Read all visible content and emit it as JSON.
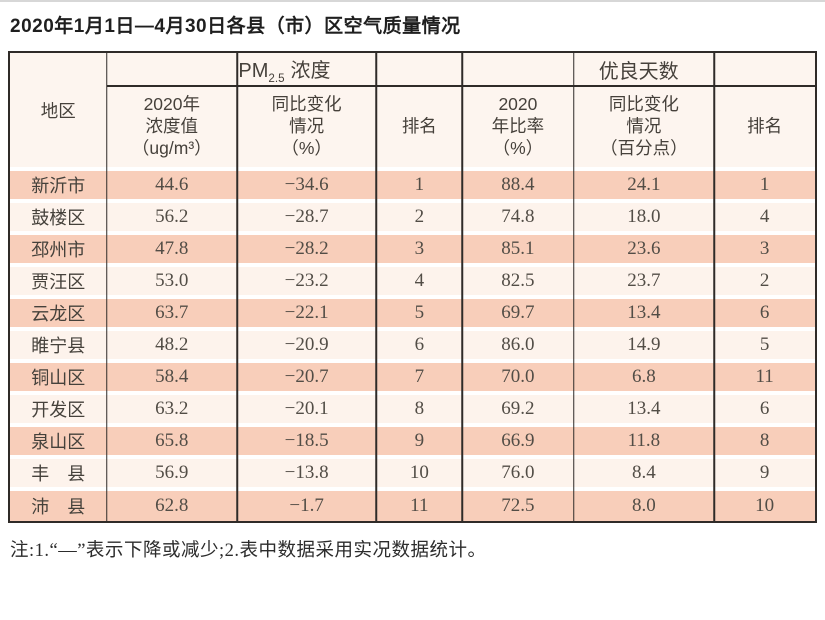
{
  "page": {
    "title": "2020年1月1日—4月30日各县（市）区空气质量情况",
    "footnote": "注:1.“—”表示下降或减少;2.表中数据采用实况数据统计。"
  },
  "table": {
    "region_header": "地区",
    "group_pm25": {
      "prefix": "PM",
      "sub": "2.5",
      "suffix": "浓度"
    },
    "group_days": "优良天数",
    "pm25_cols": {
      "value": "2020年\n浓度值\n（ug/m³）",
      "yoy": "同比变化\n情况\n（%）",
      "rank": "排名"
    },
    "days_cols": {
      "ratio": "2020\n年比率\n（%）",
      "yoy": "同比变化\n情况\n（百分点）",
      "rank": "排名"
    },
    "rows": [
      {
        "region": "新沂市",
        "pm25_value": "44.6",
        "pm25_yoy": "−34.6",
        "pm25_rank": "1",
        "days_ratio": "88.4",
        "days_yoy": "24.1",
        "days_rank": "1"
      },
      {
        "region": "鼓楼区",
        "pm25_value": "56.2",
        "pm25_yoy": "−28.7",
        "pm25_rank": "2",
        "days_ratio": "74.8",
        "days_yoy": "18.0",
        "days_rank": "4"
      },
      {
        "region": "邳州市",
        "pm25_value": "47.8",
        "pm25_yoy": "−28.2",
        "pm25_rank": "3",
        "days_ratio": "85.1",
        "days_yoy": "23.6",
        "days_rank": "3"
      },
      {
        "region": "贾汪区",
        "pm25_value": "53.0",
        "pm25_yoy": "−23.2",
        "pm25_rank": "4",
        "days_ratio": "82.5",
        "days_yoy": "23.7",
        "days_rank": "2"
      },
      {
        "region": "云龙区",
        "pm25_value": "63.7",
        "pm25_yoy": "−22.1",
        "pm25_rank": "5",
        "days_ratio": "69.7",
        "days_yoy": "13.4",
        "days_rank": "6"
      },
      {
        "region": "睢宁县",
        "pm25_value": "48.2",
        "pm25_yoy": "−20.9",
        "pm25_rank": "6",
        "days_ratio": "86.0",
        "days_yoy": "14.9",
        "days_rank": "5"
      },
      {
        "region": "铜山区",
        "pm25_value": "58.4",
        "pm25_yoy": "−20.7",
        "pm25_rank": "7",
        "days_ratio": "70.0",
        "days_yoy": "6.8",
        "days_rank": "11"
      },
      {
        "region": "开发区",
        "pm25_value": "63.2",
        "pm25_yoy": "−20.1",
        "pm25_rank": "8",
        "days_ratio": "69.2",
        "days_yoy": "13.4",
        "days_rank": "6"
      },
      {
        "region": "泉山区",
        "pm25_value": "65.8",
        "pm25_yoy": "−18.5",
        "pm25_rank": "9",
        "days_ratio": "66.9",
        "days_yoy": "11.8",
        "days_rank": "8"
      },
      {
        "region": "丰　县",
        "pm25_value": "56.9",
        "pm25_yoy": "−13.8",
        "pm25_rank": "10",
        "days_ratio": "76.0",
        "days_yoy": "8.4",
        "days_rank": "9"
      },
      {
        "region": "沛　县",
        "pm25_value": "62.8",
        "pm25_yoy": "−1.7",
        "pm25_rank": "11",
        "days_ratio": "72.5",
        "days_yoy": "8.0",
        "days_rank": "10"
      }
    ]
  },
  "colors": {
    "row_peach": "#f8ceba",
    "row_light": "#fdf3ec",
    "header_bg": "#fdf5ef",
    "border_dark": "#2f2b28"
  }
}
